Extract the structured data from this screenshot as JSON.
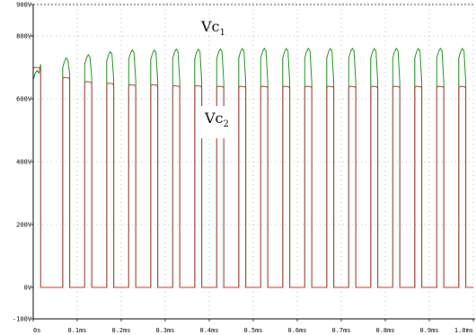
{
  "chart_data": {
    "type": "line",
    "x_unit": "ms",
    "xlim": [
      0,
      1.0
    ],
    "ylim": [
      -100,
      900
    ],
    "grid": true,
    "x_ticks": [
      0,
      0.1,
      0.2,
      0.3,
      0.4,
      0.5,
      0.6,
      0.7,
      0.8,
      0.9,
      1.0
    ],
    "x_tick_labels": [
      "0s",
      "0.1ms",
      "0.2ms",
      "0.3ms",
      "0.4ms",
      "0.5ms",
      "0.6ms",
      "0.7ms",
      "0.8ms",
      "0.9ms",
      "1.0ms"
    ],
    "y_ticks": [
      -100,
      0,
      200,
      400,
      600,
      800,
      900
    ],
    "y_tick_labels": [
      "-100V",
      "0V",
      "200V",
      "400V",
      "600V",
      "800V",
      "900V"
    ],
    "colors": {
      "Vc1": "#008000",
      "Vc2": "#b03030"
    },
    "pulse_period_ms": 0.05,
    "pulse_on_ms": 0.033,
    "pulse_start_ms": 0.017,
    "pulse_count": 20,
    "pulses": [
      {
        "start": 0.0,
        "end": 0.017,
        "vc2": 700,
        "vc1": 690
      },
      {
        "start": 0.067,
        "end": 0.083,
        "vc2": 668,
        "vc1": 730
      },
      {
        "start": 0.117,
        "end": 0.133,
        "vc2": 655,
        "vc1": 740
      },
      {
        "start": 0.167,
        "end": 0.183,
        "vc2": 650,
        "vc1": 750
      },
      {
        "start": 0.217,
        "end": 0.233,
        "vc2": 645,
        "vc1": 755
      },
      {
        "start": 0.267,
        "end": 0.283,
        "vc2": 645,
        "vc1": 755
      },
      {
        "start": 0.317,
        "end": 0.333,
        "vc2": 642,
        "vc1": 758
      },
      {
        "start": 0.367,
        "end": 0.383,
        "vc2": 642,
        "vc1": 758
      },
      {
        "start": 0.417,
        "end": 0.433,
        "vc2": 640,
        "vc1": 758
      },
      {
        "start": 0.467,
        "end": 0.483,
        "vc2": 640,
        "vc1": 760
      },
      {
        "start": 0.517,
        "end": 0.533,
        "vc2": 640,
        "vc1": 760
      },
      {
        "start": 0.567,
        "end": 0.583,
        "vc2": 640,
        "vc1": 760
      },
      {
        "start": 0.617,
        "end": 0.633,
        "vc2": 640,
        "vc1": 760
      },
      {
        "start": 0.667,
        "end": 0.683,
        "vc2": 640,
        "vc1": 760
      },
      {
        "start": 0.717,
        "end": 0.733,
        "vc2": 640,
        "vc1": 760
      },
      {
        "start": 0.767,
        "end": 0.783,
        "vc2": 640,
        "vc1": 760
      },
      {
        "start": 0.817,
        "end": 0.833,
        "vc2": 640,
        "vc1": 760
      },
      {
        "start": 0.867,
        "end": 0.883,
        "vc2": 640,
        "vc1": 760
      },
      {
        "start": 0.917,
        "end": 0.933,
        "vc2": 640,
        "vc1": 760
      },
      {
        "start": 0.967,
        "end": 0.983,
        "vc2": 640,
        "vc1": 760
      }
    ],
    "annotations": [
      {
        "base": "Vc",
        "sub": "1",
        "series": "Vc1"
      },
      {
        "base": "Vc",
        "sub": "2",
        "series": "Vc2"
      }
    ]
  }
}
